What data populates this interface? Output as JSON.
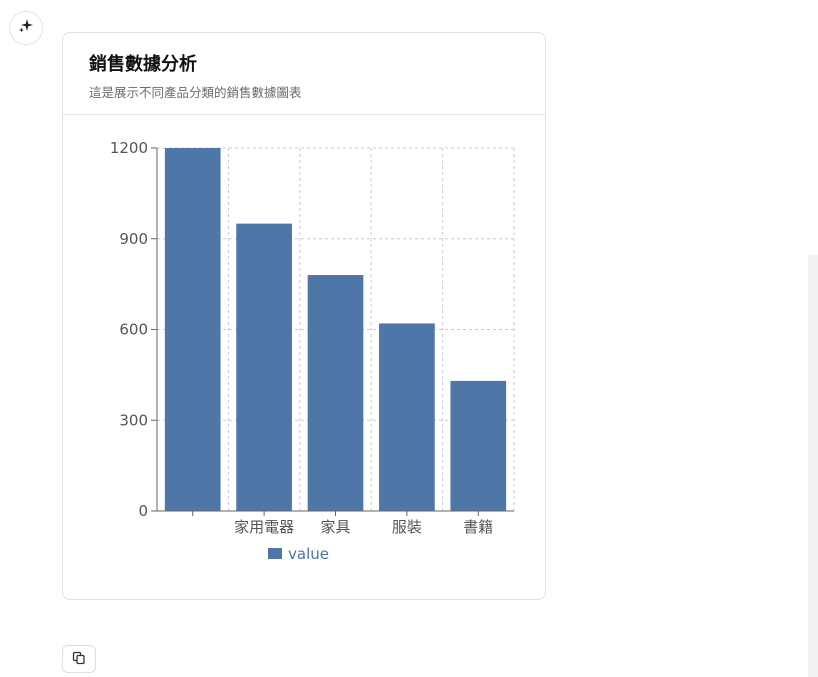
{
  "header": {
    "title": "銷售數據分析",
    "subtitle": "這是展示不同產品分類的銷售數據圖表"
  },
  "icons": {
    "top_button": "sparkle-icon",
    "bottom_button": "copy-icon"
  },
  "colors": {
    "bar": "#4e76a6",
    "grid": "#cccccc",
    "axis": "#666666"
  },
  "chart_data": {
    "type": "bar",
    "categories": [
      "",
      "家用電器",
      "家具",
      "服裝",
      "書籍"
    ],
    "series": [
      {
        "name": "value",
        "values": [
          1200,
          950,
          780,
          620,
          430
        ]
      }
    ],
    "title": "",
    "xlabel": "",
    "ylabel": "",
    "ylim": [
      0,
      1200
    ],
    "yticks": [
      0,
      300,
      600,
      900,
      1200
    ],
    "grid": true,
    "legend": "bottom-center"
  }
}
